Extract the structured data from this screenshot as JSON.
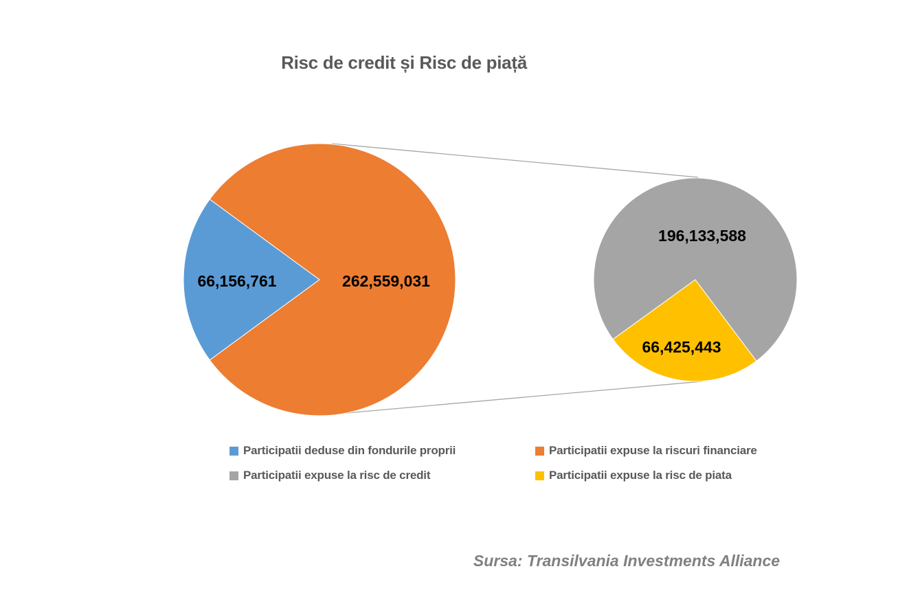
{
  "title": "Risc de credit și Risc de piață",
  "source": "Sursa: Transilvania Investments Alliance",
  "chart_data": {
    "type": "pie",
    "subtype": "pie-of-pie",
    "title": "Risc de credit și Risc de piață",
    "legend_position": "bottom",
    "primary": {
      "slices": [
        {
          "label": "Participatii deduse din fondurile proprii",
          "value": 66156761,
          "display": "66,156,761",
          "color": "#5B9BD5"
        },
        {
          "label": "Participatii expuse la riscuri financiare",
          "value": 262559031,
          "display": "262,559,031",
          "color": "#ED7D31"
        }
      ],
      "first_slice_center_angle_deg": 180
    },
    "secondary": {
      "slices": [
        {
          "label": "Participatii expuse la risc de credit",
          "value": 196133588,
          "display": "196,133,588",
          "color": "#A5A5A5"
        },
        {
          "label": "Participatii expuse la risc de piata",
          "value": 66425443,
          "display": "66,425,443",
          "color": "#FFC000"
        }
      ],
      "last_slice_center_angle_deg": 261.4
    },
    "connector_color": "#A6A6A6",
    "label_color": "#000000",
    "title_color": "#595959",
    "legend_text_color": "#595959"
  },
  "legend": {
    "items": [
      {
        "label": "Participatii deduse din fondurile proprii",
        "color": "#5B9BD5"
      },
      {
        "label": "Participatii expuse la riscuri financiare",
        "color": "#ED7D31"
      },
      {
        "label": "Participatii expuse la risc de credit",
        "color": "#A5A5A5"
      },
      {
        "label": "Participatii expuse la risc de piata",
        "color": "#FFC000"
      }
    ]
  }
}
